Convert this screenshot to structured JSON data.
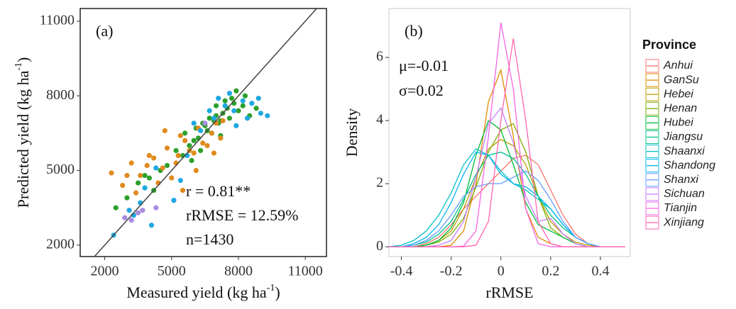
{
  "chart_data": [
    {
      "type": "scatter",
      "title": "(a)",
      "xlabel": {
        "text": "Measured yield (kg ha",
        "sup": "-1",
        "end": ")"
      },
      "ylabel": {
        "text": "Predicted yield (kg ha",
        "sup": "-1",
        "end": ")"
      },
      "annotations": [
        "r = 0.81**",
        "rRMSE = 12.59%",
        "n=1430"
      ],
      "xlim": [
        900,
        11950
      ],
      "ylim": [
        1540,
        11510
      ],
      "xticks": [
        2000,
        5000,
        8000,
        11000
      ],
      "yticks": [
        2000,
        5000,
        8000,
        11000
      ],
      "series": [
        {
          "color": "#2ca02c",
          "x": [
            6500,
            7000,
            7200,
            7500,
            6800,
            7300,
            7800,
            8000,
            6200,
            5800,
            5500,
            6000,
            7100,
            7600,
            8200,
            8500,
            6900,
            6600,
            4500,
            4000,
            3500,
            3000,
            5200,
            4800,
            7400,
            7700,
            8800,
            6300,
            5600,
            4200,
            2500,
            7900,
            6700,
            7200,
            8300,
            5900,
            6400,
            3800,
            7000,
            6100
          ],
          "y": [
            6800,
            7200,
            7000,
            7500,
            6500,
            7300,
            7700,
            7400,
            6300,
            6000,
            5600,
            6200,
            6900,
            7100,
            7600,
            7200,
            7000,
            6600,
            5000,
            4700,
            4500,
            3900,
            5800,
            5200,
            7800,
            7900,
            7500,
            5800,
            6500,
            4200,
            3500,
            8200,
            7100,
            6400,
            8000,
            5400,
            6900,
            4800,
            7600,
            6700
          ]
        },
        {
          "color": "#e08a1e",
          "x": [
            2300,
            2800,
            3200,
            3600,
            4000,
            4400,
            4800,
            5200,
            5600,
            6000,
            6400,
            6800,
            7200,
            5000,
            4600,
            3900,
            3400,
            5800,
            6200,
            6600,
            7000,
            5400,
            4200,
            3000,
            5500,
            6100,
            6900,
            4700,
            5300,
            7300
          ],
          "y": [
            4900,
            4400,
            5300,
            4800,
            5600,
            4500,
            5900,
            5300,
            6200,
            5700,
            6100,
            6500,
            6300,
            4700,
            5100,
            5200,
            4100,
            5800,
            6700,
            6000,
            6900,
            6400,
            5500,
            4800,
            4200,
            5000,
            5700,
            6600,
            5600,
            7000
          ]
        },
        {
          "color": "#1fa8e0",
          "x": [
            2400,
            3300,
            3800,
            4300,
            5100,
            5700,
            6300,
            6900,
            7400,
            7800,
            8200,
            8600,
            9000,
            7600,
            8400,
            4100,
            3600,
            6700,
            7100,
            5400,
            8900,
            7900,
            9300,
            3100,
            6000
          ],
          "y": [
            2400,
            3200,
            4300,
            5100,
            3800,
            5600,
            6600,
            7100,
            7600,
            7400,
            7800,
            7700,
            7300,
            8100,
            7100,
            2800,
            3700,
            7400,
            7900,
            4600,
            7900,
            6800,
            7200,
            3400,
            6900
          ]
        },
        {
          "color": "#a98be0",
          "x": [
            2900,
            3200,
            3700,
            4300,
            3500,
            6500
          ],
          "y": [
            3100,
            3000,
            3400,
            3500,
            3300,
            6900
          ]
        }
      ]
    },
    {
      "type": "line",
      "title": "(b)",
      "xlabel": "rRMSE",
      "ylabel": "Density",
      "annotations": [
        "μ=-0.01",
        "σ=0.02"
      ],
      "legend": {
        "title": "Province",
        "position": "right"
      },
      "xlim": [
        -0.45,
        0.52
      ],
      "ylim": [
        -0.31,
        7.55
      ],
      "xticks": [
        -0.4,
        -0.2,
        0,
        0.2,
        0.4
      ],
      "yticks": [
        0,
        2,
        4,
        6
      ],
      "x": [
        -0.45,
        -0.4,
        -0.35,
        -0.3,
        -0.25,
        -0.2,
        -0.15,
        -0.1,
        -0.05,
        0,
        0.05,
        0.1,
        0.15,
        0.2,
        0.25,
        0.3,
        0.35,
        0.4,
        0.45,
        0.5
      ],
      "series": [
        {
          "name": "Anhui",
          "color": "#F8766D",
          "values": [
            0,
            0,
            0,
            0.1,
            0.3,
            0.7,
            1.2,
            1.6,
            2.0,
            2.4,
            2.8,
            2.9,
            2.6,
            1.8,
            1.0,
            0.4,
            0.1,
            0,
            0,
            0
          ]
        },
        {
          "name": "GanSu",
          "color": "#DE8C00",
          "values": [
            0,
            0,
            0,
            0,
            0,
            0.05,
            0.5,
            2.0,
            4.6,
            5.6,
            3.5,
            1.2,
            0.3,
            0.1,
            0,
            0,
            0,
            0,
            0,
            0
          ]
        },
        {
          "name": "Hebei",
          "color": "#B79F00",
          "values": [
            0,
            0,
            0,
            0.05,
            0.2,
            0.5,
            1.2,
            2.2,
            3.1,
            3.4,
            3.2,
            2.6,
            1.6,
            0.8,
            0.4,
            0.15,
            0.05,
            0,
            0,
            0
          ]
        },
        {
          "name": "Henan",
          "color": "#7CAE00",
          "values": [
            0,
            0,
            0,
            0.05,
            0.15,
            0.4,
            0.9,
            1.9,
            3.0,
            3.7,
            3.9,
            3.0,
            1.6,
            0.6,
            0.3,
            0.1,
            0,
            0,
            0,
            0
          ]
        },
        {
          "name": "Hubei",
          "color": "#00BA38",
          "values": [
            0,
            0,
            0,
            0.05,
            0.2,
            0.6,
            1.4,
            2.9,
            4.0,
            3.7,
            2.6,
            1.4,
            0.7,
            0.5,
            0.3,
            0.1,
            0,
            0,
            0,
            0
          ]
        },
        {
          "name": "Jiangsu",
          "color": "#00C08B",
          "values": [
            0,
            0,
            0.05,
            0.15,
            0.4,
            0.8,
            1.5,
            2.3,
            2.9,
            3.0,
            2.8,
            2.3,
            1.6,
            1.0,
            0.6,
            0.3,
            0.1,
            0,
            0,
            0
          ]
        },
        {
          "name": "Shaanxi",
          "color": "#00BFC4",
          "values": [
            0,
            0.05,
            0.2,
            0.5,
            1.0,
            1.7,
            2.6,
            3.1,
            2.9,
            2.4,
            2.0,
            1.8,
            1.5,
            1.2,
            0.7,
            0.3,
            0.1,
            0,
            0,
            0
          ]
        },
        {
          "name": "Shandong",
          "color": "#00B4F0",
          "values": [
            0,
            0,
            0.1,
            0.3,
            0.7,
            1.4,
            2.3,
            3.0,
            2.9,
            2.3,
            2.0,
            1.9,
            1.6,
            1.2,
            0.7,
            0.3,
            0.1,
            0,
            0,
            0
          ]
        },
        {
          "name": "Shanxi",
          "color": "#619CFF",
          "values": [
            0,
            0,
            0.05,
            0.2,
            0.5,
            1.0,
            1.6,
            1.9,
            2.0,
            2.0,
            2.2,
            2.4,
            2.1,
            1.5,
            0.8,
            0.3,
            0.1,
            0,
            0,
            0
          ]
        },
        {
          "name": "Sichuan",
          "color": "#C77CFF",
          "values": [
            0,
            0,
            0,
            0,
            0.05,
            0.2,
            0.8,
            2.2,
            3.9,
            4.4,
            3.3,
            1.6,
            0.8,
            0.9,
            0.4,
            0.1,
            0,
            0,
            0,
            0
          ]
        },
        {
          "name": "Tianjin",
          "color": "#F564E3",
          "values": [
            0,
            0,
            0,
            0,
            0,
            0,
            0.02,
            0.5,
            3.5,
            7.1,
            5.0,
            1.2,
            0.1,
            0,
            0,
            0,
            0,
            0,
            0,
            0
          ]
        },
        {
          "name": "Xinjiang",
          "color": "#FF64B0",
          "values": [
            0,
            0,
            0,
            0,
            0,
            0,
            0,
            0.05,
            0.8,
            4.0,
            6.6,
            4.0,
            0.8,
            0.1,
            0,
            0,
            0,
            0,
            0,
            0
          ]
        }
      ]
    }
  ]
}
